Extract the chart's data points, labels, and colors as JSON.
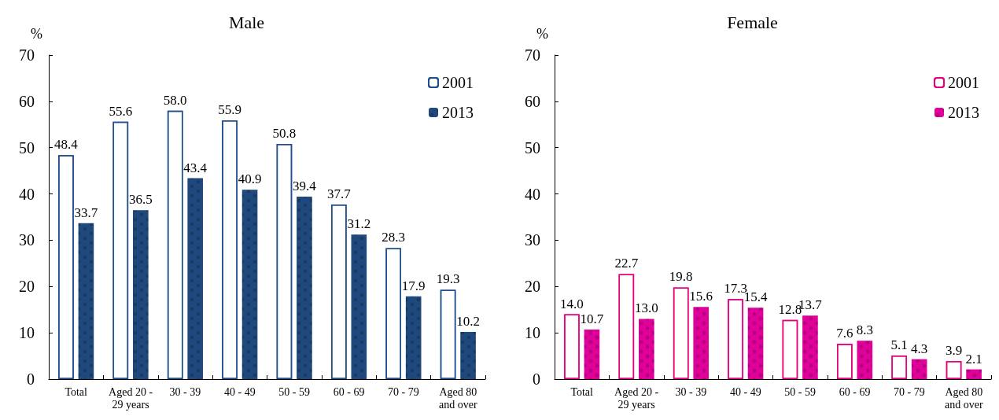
{
  "chart_data": [
    {
      "type": "bar",
      "title": "Male",
      "ylabel": "%",
      "categories": [
        "Total",
        "Aged 20 -\n29 years",
        "30 - 39",
        "40 - 49",
        "50 - 59",
        "60 - 69",
        "70 - 79",
        "Aged 80\nand over"
      ],
      "series": [
        {
          "name": "2001",
          "color": "#1f4e8c",
          "values": [
            48.4,
            55.6,
            58,
            55.9,
            50.8,
            37.7,
            28.3,
            19.3
          ],
          "value_labels": [
            "48.4",
            "55.6",
            "58.0",
            "55.9",
            "50.8",
            "37.7",
            "28.3",
            "19.3"
          ]
        },
        {
          "name": "2013",
          "color": "#1f497d",
          "values": [
            33.7,
            36.5,
            43.4,
            40.9,
            39.4,
            31.2,
            17.9,
            10.2
          ],
          "value_labels": [
            "33.7",
            "36.5",
            "43.4",
            "40.9",
            "39.4",
            "31.2",
            "17.9",
            "10.2"
          ]
        }
      ],
      "ylim": [
        0,
        70
      ],
      "yticks": [
        0,
        10,
        20,
        30,
        40,
        50,
        60,
        70
      ],
      "grid": false,
      "legend": "top right"
    },
    {
      "type": "bar",
      "title": "Female",
      "ylabel": "%",
      "categories": [
        "Total",
        "Aged 20 -\n29 years",
        "30 - 39",
        "40 - 49",
        "50 - 59",
        "60 - 69",
        "70 - 79",
        "Aged 80\nand over"
      ],
      "series": [
        {
          "name": "2001",
          "color": "#e6007e",
          "values": [
            14,
            22.7,
            19.8,
            17.3,
            12.8,
            7.6,
            5.1,
            3.9
          ],
          "value_labels": [
            "14.0",
            "22.7",
            "19.8",
            "17.3",
            "12.8",
            "7.6",
            "5.1",
            "3.9"
          ]
        },
        {
          "name": "2013",
          "color": "#e0009a",
          "values": [
            10.7,
            13,
            15.6,
            15.4,
            13.7,
            8.3,
            4.3,
            2.1
          ],
          "value_labels": [
            "10.7",
            "13.0",
            "15.6",
            "15.4",
            "13.7",
            "8.3",
            "4.3",
            "2.1"
          ]
        }
      ],
      "ylim": [
        0,
        70
      ],
      "yticks": [
        0,
        10,
        20,
        30,
        40,
        50,
        60,
        70
      ],
      "grid": false,
      "legend": "top right"
    }
  ]
}
